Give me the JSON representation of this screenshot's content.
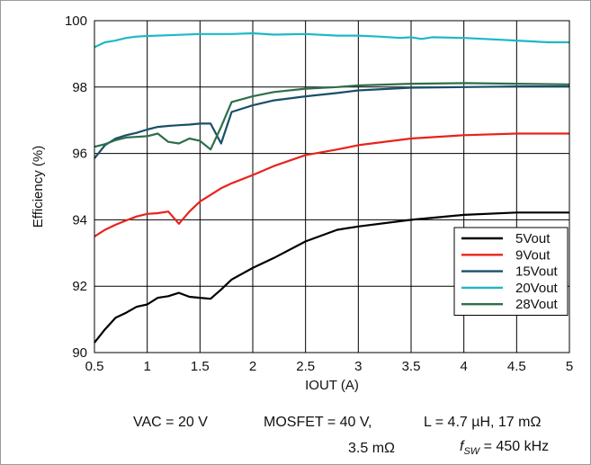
{
  "chart_data": {
    "type": "line",
    "xlabel": "IOUT (A)",
    "ylabel": "Efficiency (%)",
    "xlim": [
      0.5,
      5
    ],
    "ylim": [
      90,
      100
    ],
    "x_ticks": [
      "0.5",
      "1",
      "1.5",
      "2",
      "2.5",
      "3",
      "3.5",
      "4",
      "4.5",
      "5"
    ],
    "y_ticks": [
      "90",
      "92",
      "94",
      "96",
      "98",
      "100"
    ],
    "grid": true,
    "legend_position": "bottom-right",
    "series": [
      {
        "name": "5Vout",
        "color": "#000000",
        "x": [
          0.5,
          0.6,
          0.7,
          0.8,
          0.9,
          1.0,
          1.1,
          1.2,
          1.3,
          1.4,
          1.5,
          1.6,
          1.7,
          1.8,
          2.0,
          2.2,
          2.5,
          2.8,
          3.0,
          3.5,
          4.0,
          4.5,
          5.0
        ],
        "y": [
          90.3,
          90.7,
          91.05,
          91.2,
          91.38,
          91.45,
          91.65,
          91.7,
          91.8,
          91.68,
          91.65,
          91.62,
          91.9,
          92.2,
          92.55,
          92.85,
          93.35,
          93.7,
          93.8,
          94.0,
          94.15,
          94.22,
          94.22
        ]
      },
      {
        "name": "9Vout",
        "color": "#e8231c",
        "x": [
          0.5,
          0.6,
          0.7,
          0.8,
          0.9,
          1.0,
          1.1,
          1.2,
          1.3,
          1.4,
          1.5,
          1.6,
          1.7,
          1.8,
          2.0,
          2.2,
          2.5,
          2.8,
          3.0,
          3.5,
          4.0,
          4.5,
          5.0
        ],
        "y": [
          93.5,
          93.7,
          93.85,
          93.98,
          94.1,
          94.18,
          94.2,
          94.25,
          93.88,
          94.25,
          94.55,
          94.75,
          94.95,
          95.1,
          95.35,
          95.62,
          95.95,
          96.12,
          96.25,
          96.45,
          96.55,
          96.6,
          96.6
        ]
      },
      {
        "name": "15Vout",
        "color": "#1a4f68",
        "x": [
          0.5,
          0.6,
          0.7,
          0.8,
          0.9,
          1.0,
          1.1,
          1.2,
          1.3,
          1.4,
          1.5,
          1.6,
          1.7,
          1.8,
          2.0,
          2.2,
          2.5,
          2.8,
          3.0,
          3.5,
          4.0,
          4.5,
          5.0
        ],
        "y": [
          95.85,
          96.25,
          96.45,
          96.55,
          96.62,
          96.72,
          96.8,
          96.83,
          96.85,
          96.87,
          96.9,
          96.9,
          96.3,
          97.25,
          97.45,
          97.6,
          97.72,
          97.82,
          97.9,
          97.98,
          98.0,
          98.02,
          98.02
        ]
      },
      {
        "name": "20Vout",
        "color": "#1db8c8",
        "x": [
          0.5,
          0.6,
          0.7,
          0.8,
          0.9,
          1.0,
          1.2,
          1.5,
          1.8,
          2.0,
          2.2,
          2.5,
          2.8,
          3.0,
          3.2,
          3.4,
          3.5,
          3.6,
          3.7,
          4.0,
          4.2,
          4.5,
          4.8,
          5.0
        ],
        "y": [
          99.2,
          99.35,
          99.4,
          99.48,
          99.52,
          99.54,
          99.56,
          99.6,
          99.6,
          99.62,
          99.58,
          99.6,
          99.55,
          99.55,
          99.52,
          99.48,
          99.5,
          99.45,
          99.5,
          99.48,
          99.45,
          99.4,
          99.35,
          99.35
        ]
      },
      {
        "name": "28Vout",
        "color": "#2e6e4a",
        "x": [
          0.5,
          0.6,
          0.7,
          0.8,
          0.9,
          1.0,
          1.1,
          1.2,
          1.3,
          1.4,
          1.5,
          1.6,
          1.7,
          1.8,
          2.0,
          2.2,
          2.5,
          2.8,
          3.0,
          3.5,
          4.0,
          4.5,
          5.0
        ],
        "y": [
          96.2,
          96.28,
          96.4,
          96.48,
          96.5,
          96.52,
          96.6,
          96.35,
          96.3,
          96.45,
          96.38,
          96.12,
          96.8,
          97.55,
          97.72,
          97.85,
          97.95,
          98.0,
          98.05,
          98.1,
          98.12,
          98.1,
          98.08
        ]
      }
    ]
  },
  "notes": {
    "vac": "VAC = 20 V",
    "mosfet_line1": "MOSFET = 40 V,",
    "mosfet_line2": "3.5 mΩ",
    "inductor": "L = 4.7 µH, 17 mΩ",
    "fsw_symbol": "f",
    "fsw_sub": "SW",
    "fsw_value": " = 450 kHz"
  }
}
